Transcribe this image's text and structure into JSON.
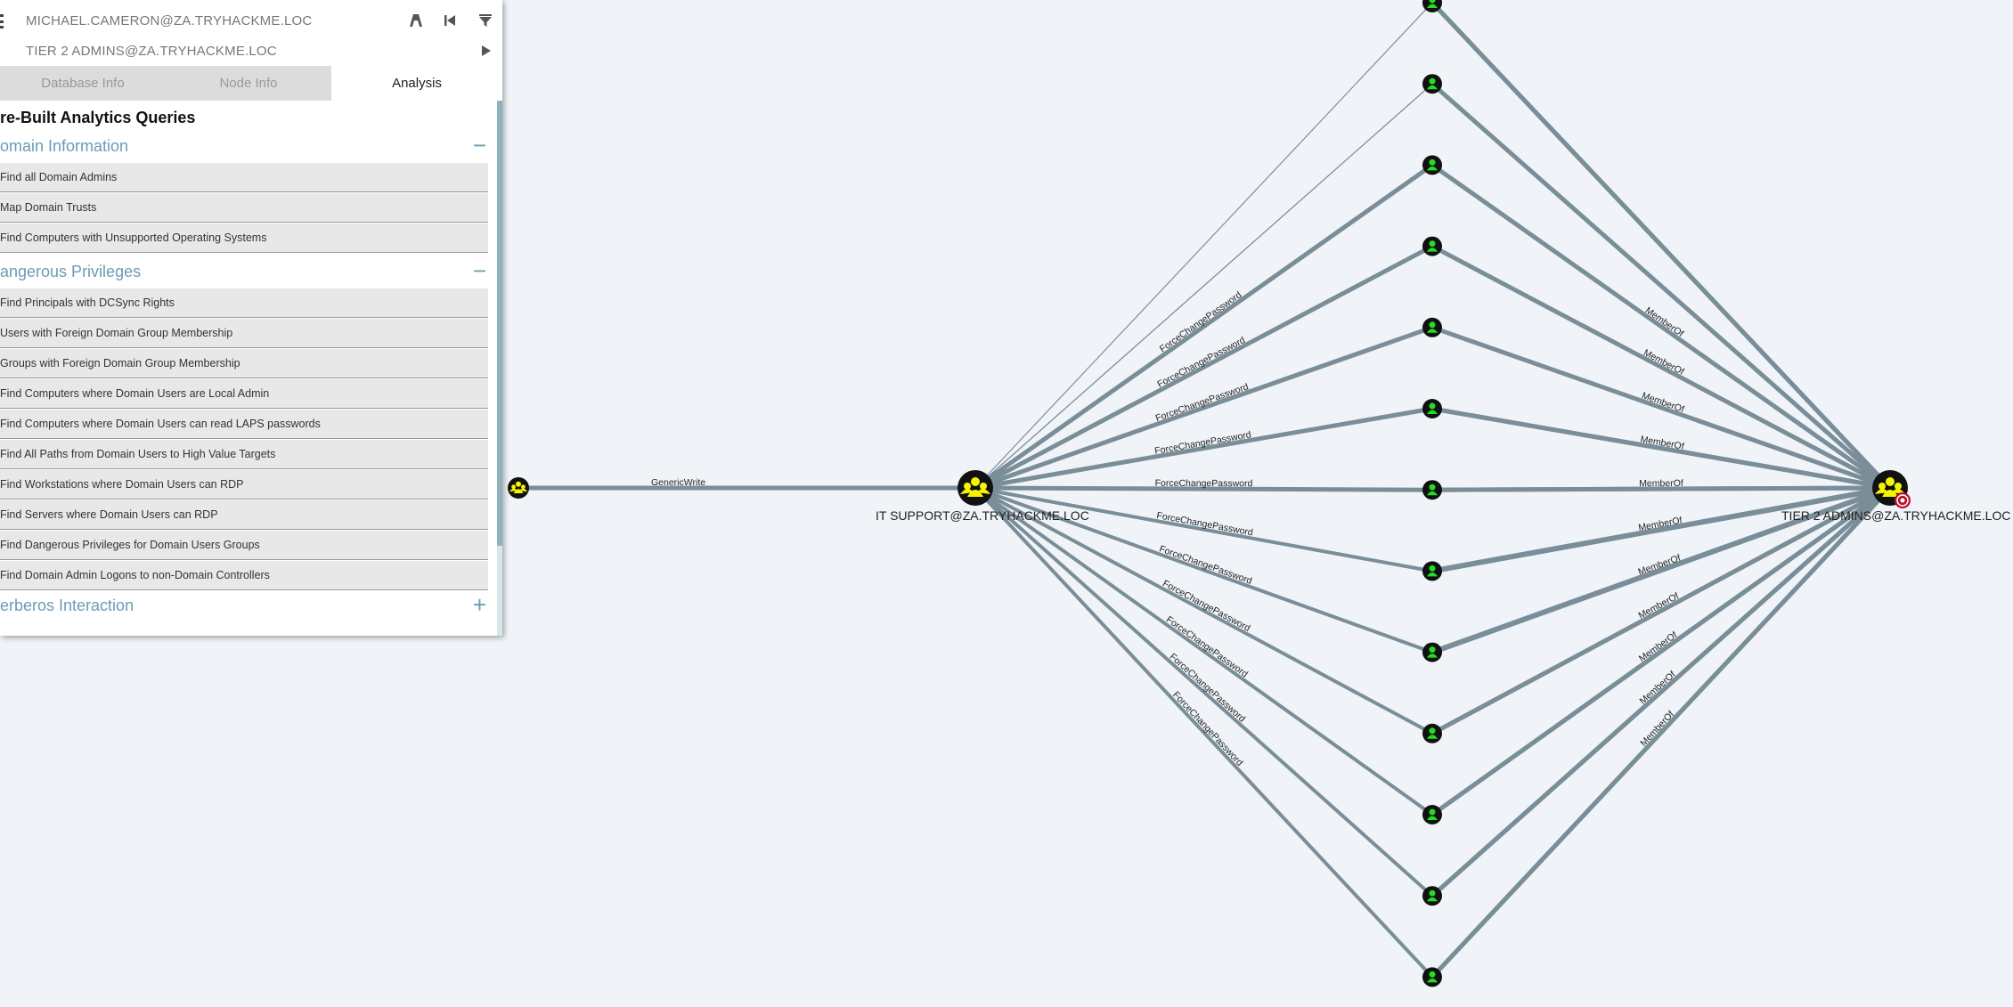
{
  "search": {
    "start_node": "MICHAEL.CAMERON@ZA.TRYHACKME.LOC",
    "target_node": "TIER 2 ADMINS@ZA.TRYHACKME.LOC"
  },
  "tabs": [
    {
      "label": "Database Info",
      "active": false
    },
    {
      "label": "Node Info",
      "active": false
    },
    {
      "label": "Analysis",
      "active": true
    }
  ],
  "analysis": {
    "heading": "re-Built Analytics Queries",
    "sections": [
      {
        "title": "omain Information",
        "toggle": "−",
        "queries": [
          "Find all Domain Admins",
          "Map Domain Trusts",
          "Find Computers with Unsupported Operating Systems"
        ]
      },
      {
        "title": "angerous Privileges",
        "toggle": "−",
        "queries": [
          "Find Principals with DCSync Rights",
          "Users with Foreign Domain Group Membership",
          "Groups with Foreign Domain Group Membership",
          "Find Computers where Domain Users are Local Admin",
          "Find Computers where Domain Users can read LAPS passwords",
          "Find All Paths from Domain Users to High Value Targets",
          "Find Workstations where Domain Users can RDP",
          "Find Servers where Domain Users can RDP",
          "Find Dangerous Privileges for Domain Users Groups",
          "Find Domain Admin Logons to non-Domain Controllers"
        ]
      },
      {
        "title": "erberos Interaction",
        "toggle": "+",
        "queries": []
      }
    ]
  },
  "graph": {
    "nodes": {
      "source_group": {
        "label": "",
        "icon": "group-icon"
      },
      "it_support": {
        "label": "IT SUPPORT@ZA.TRYHACKME.LOC",
        "icon": "group-icon"
      },
      "tier2_admins": {
        "label": "TIER 2 ADMINS@ZA.TRYHACKME.LOC",
        "icon": "group-icon",
        "marker": "target-icon"
      },
      "user_count": 13
    },
    "edge_labels": {
      "generic_write": "GenericWrite",
      "force_change_password": "ForceChangePassword",
      "member_of": "MemberOf"
    },
    "colors": {
      "edge": "#7a8e99",
      "node_fill": "#111111",
      "group_icon": "#f5f500",
      "user_icon": "#22dd22",
      "target": "#c0102a",
      "accent": "#6b9cb5"
    }
  }
}
